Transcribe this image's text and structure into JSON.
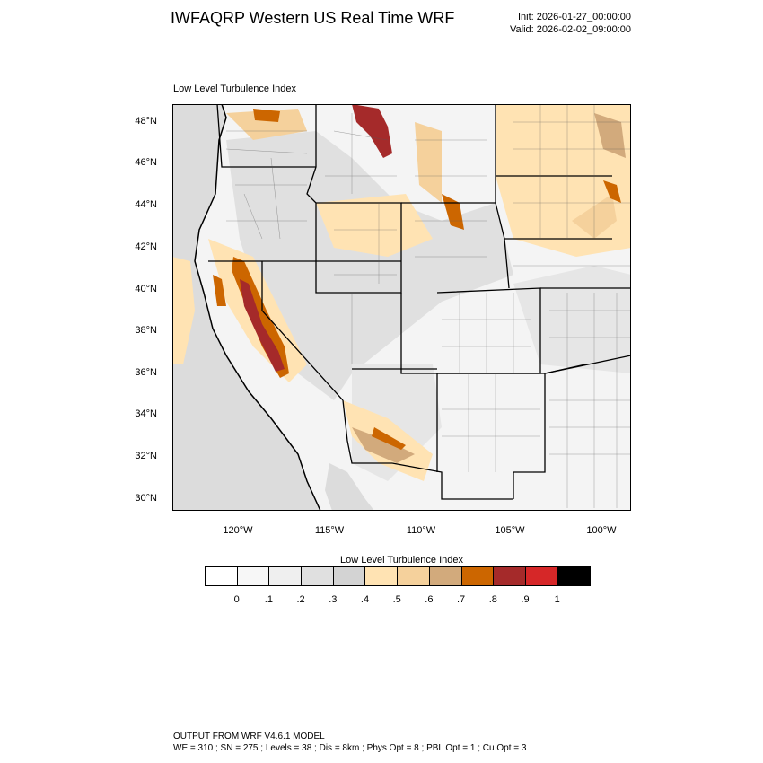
{
  "header": {
    "title": "IWFAQRP Western US Real Time WRF",
    "init": "Init: 2026-01-27_00:00:00",
    "valid": "Valid: 2026-02-02_09:00:00"
  },
  "panel_title": "Low Level Turbulence Index",
  "map": {
    "lat_labels": [
      "48°N",
      "46°N",
      "44°N",
      "42°N",
      "40°N",
      "38°N",
      "36°N",
      "34°N",
      "32°N",
      "30°N"
    ],
    "lon_labels": [
      "120°W",
      "115°W",
      "110°W",
      "105°W",
      "100°W"
    ],
    "ocean_color": "#dcdcdc"
  },
  "colorbar": {
    "title": "Low Level Turbulence Index",
    "labels": [
      "0",
      ".1",
      ".2",
      ".3",
      ".4",
      ".5",
      ".6",
      ".7",
      ".8",
      ".9",
      "1"
    ],
    "colors": [
      "#ffffff",
      "#f7f7f7",
      "#efefef",
      "#e0e0e0",
      "#d3d3d3",
      "#ffe3b3",
      "#f5d19c",
      "#d2aa7c",
      "#cc6600",
      "#a52a2a",
      "#d62728",
      "#000000"
    ]
  },
  "footer": {
    "line1": "OUTPUT FROM WRF V4.6.1 MODEL",
    "line2": "WE = 310 ; SN = 275 ; Levels = 38 ; Dis = 8km ; Phys Opt = 8 ; PBL Opt = 1 ; Cu Opt = 3"
  }
}
